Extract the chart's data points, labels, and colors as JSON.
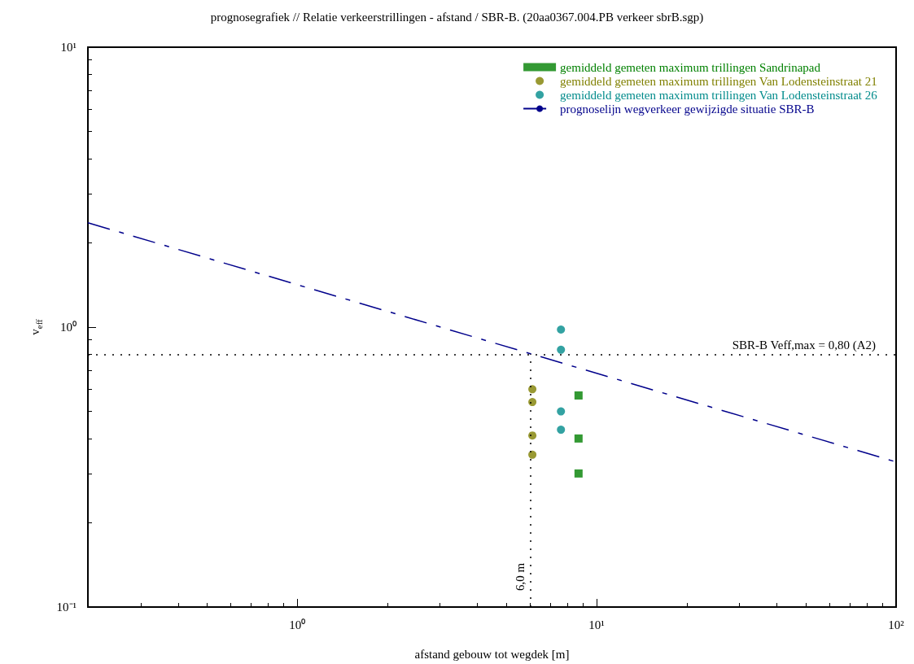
{
  "chart_data": {
    "type": "scatter",
    "title": "prognosegrafiek // Relatie verkeerstrillingen - afstand / SBR-B. (20aa0367.004.PB verkeer sbrB.sgp)",
    "xlabel": "afstand gebouw tot wegdek [m]",
    "ylabel": "v$_{eff}$",
    "log": "xy",
    "grid": false,
    "legend": "top right",
    "xlim": [
      0.2,
      100
    ],
    "ylim": [
      0.1,
      10
    ],
    "xticks": [
      {
        "value": 1,
        "label": "10⁰"
      },
      {
        "value": 10,
        "label": "10¹"
      },
      {
        "value": 100,
        "label": "10²"
      }
    ],
    "yticks": [
      {
        "value": 0.1,
        "label": "10⁻¹"
      },
      {
        "value": 1,
        "label": "10⁰"
      },
      {
        "value": 10,
        "label": "10¹"
      }
    ],
    "series": [
      {
        "name": "gemiddeld gemeten maximum trillingen Sandrinapad",
        "color": "#008000",
        "marker": "square",
        "x": [
          8.7,
          8.7,
          8.7
        ],
        "values": [
          0.57,
          0.4,
          0.3
        ]
      },
      {
        "name": "gemiddeld gemeten maximum trillingen Van Lodensteinstraat 21",
        "color": "#808000",
        "marker": "circle",
        "x": [
          6.1,
          6.1,
          6.1,
          6.1
        ],
        "values": [
          0.6,
          0.54,
          0.41,
          0.35
        ]
      },
      {
        "name": "gemiddeld gemeten maximum trillingen Van Lodensteinstraat 26",
        "color": "#008b8b",
        "marker": "circle",
        "x": [
          7.6,
          7.6,
          7.6,
          7.6
        ],
        "values": [
          0.98,
          0.83,
          0.5,
          0.43
        ]
      },
      {
        "name": "prognoselijn wegverkeer gewijzigde situatie SBR-B",
        "type": "line",
        "color": "#00008b",
        "marker": "none",
        "line_style": "dashed",
        "x": [
          0.2,
          100
        ],
        "values": [
          2.36,
          0.33
        ]
      }
    ],
    "ref_lines": [
      {
        "axis": "y",
        "value": 0.8,
        "label": "SBR-B Veff,max = 0,80 (A2)",
        "color": "#000000",
        "line_style": "dotted"
      },
      {
        "axis": "x",
        "value": 6.0,
        "label": "6,0 m",
        "color": "#000000",
        "line_style": "dotted"
      }
    ]
  }
}
